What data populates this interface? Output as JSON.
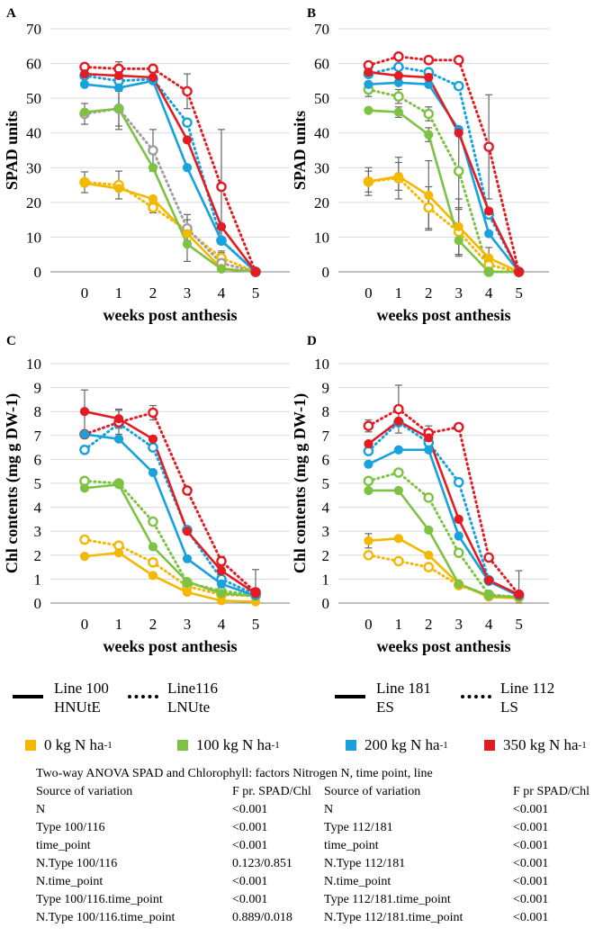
{
  "chart_data": [
    {
      "type": "line",
      "panel": "A",
      "ylabel": "SPAD units",
      "xlabel": "weeks post anthesis",
      "x": [
        0,
        1,
        2,
        3,
        4,
        5
      ],
      "xticks": [
        "0",
        "1",
        "2",
        "3",
        "4",
        "5"
      ],
      "ylim": [
        0,
        70
      ],
      "yticks": [
        "0",
        "10",
        "20",
        "30",
        "40",
        "50",
        "60",
        "70"
      ],
      "series": [
        {
          "name": "0 kg N solid",
          "color": "#F5B800",
          "style": "solid",
          "values": [
            25.5,
            24.0,
            21.0,
            11.0,
            1.0,
            0.0
          ],
          "err": [
            0,
            0,
            0,
            0,
            0,
            0
          ]
        },
        {
          "name": "0 kg N dotted",
          "color": "#F5B800",
          "style": "dotted",
          "values": [
            25.8,
            25.0,
            18.5,
            12.0,
            4.0,
            0.0
          ],
          "err": [
            3.0,
            4.0,
            1.5,
            3.0,
            2.0,
            0
          ]
        },
        {
          "name": "100 kg N solid",
          "color": "#7DC242",
          "style": "solid",
          "values": [
            46.0,
            47.0,
            30.0,
            8.0,
            0.8,
            0.0
          ],
          "err": [
            0,
            6.0,
            0,
            5.0,
            0,
            0
          ]
        },
        {
          "name": "100 kg N dotted",
          "color": "#A0A0A0",
          "style": "dotted",
          "values": [
            45.5,
            47.0,
            35.0,
            12.5,
            2.5,
            0.0
          ],
          "err": [
            3.0,
            5.0,
            6.0,
            4.0,
            3.0,
            0
          ]
        },
        {
          "name": "200 kg N solid",
          "color": "#17A2DE",
          "style": "solid",
          "values": [
            54.0,
            53.0,
            55.0,
            30.0,
            9.0,
            0.0
          ],
          "err": [
            0,
            0,
            0,
            0,
            0,
            0
          ]
        },
        {
          "name": "200 kg N dotted",
          "color": "#17A2DE",
          "style": "dotted",
          "values": [
            56.5,
            55.0,
            55.5,
            43.0,
            9.0,
            0.0
          ],
          "err": [
            0,
            0,
            0,
            0,
            0,
            0
          ]
        },
        {
          "name": "350 kg N solid",
          "color": "#E31B23",
          "style": "solid",
          "values": [
            57.0,
            56.5,
            56.0,
            38.0,
            13.0,
            0.0
          ],
          "err": [
            0,
            0,
            0,
            0,
            0,
            0
          ]
        },
        {
          "name": "350 kg N dotted",
          "color": "#E31B23",
          "style": "dotted",
          "values": [
            59.0,
            58.5,
            58.5,
            52.0,
            24.5,
            0.0
          ],
          "err": [
            1.0,
            2.0,
            1.0,
            5.0,
            16.5,
            0
          ]
        }
      ]
    },
    {
      "type": "line",
      "panel": "B",
      "ylabel": "SPAD units",
      "xlabel": "weeks post anthesis",
      "x": [
        0,
        1,
        2,
        3,
        4,
        5
      ],
      "xticks": [
        "0",
        "1",
        "2",
        "3",
        "4",
        "5"
      ],
      "ylim": [
        0,
        70
      ],
      "yticks": [
        "0",
        "10",
        "20",
        "30",
        "40",
        "50",
        "60",
        "70"
      ],
      "series": [
        {
          "name": "0 kg N solid",
          "color": "#F5B800",
          "style": "solid",
          "values": [
            26.0,
            27.5,
            22.0,
            13.0,
            4.0,
            0.0
          ],
          "err": [
            3.0,
            4.0,
            10.0,
            8.0,
            3.0,
            0
          ]
        },
        {
          "name": "0 kg N dotted",
          "color": "#F5B800",
          "style": "dotted",
          "values": [
            26.0,
            27.0,
            18.5,
            11.5,
            2.0,
            0.0
          ],
          "err": [
            4.0,
            6.0,
            6.0,
            7.0,
            2.0,
            0
          ]
        },
        {
          "name": "100 kg N solid",
          "color": "#7DC242",
          "style": "solid",
          "values": [
            46.5,
            46.0,
            39.5,
            9.0,
            0.0,
            0.0
          ],
          "err": [
            0,
            1.5,
            2.0,
            4.0,
            0,
            0
          ]
        },
        {
          "name": "100 kg N dotted",
          "color": "#7DC242",
          "style": "dotted",
          "values": [
            52.5,
            50.5,
            45.5,
            29.0,
            0.0,
            0.0
          ],
          "err": [
            2.0,
            2.0,
            2.0,
            11.0,
            0,
            0
          ]
        },
        {
          "name": "200 kg N solid",
          "color": "#17A2DE",
          "style": "solid",
          "values": [
            54.0,
            54.5,
            54.0,
            41.0,
            11.0,
            0.0
          ],
          "err": [
            0,
            0,
            0,
            0,
            0,
            0
          ]
        },
        {
          "name": "200 kg N dotted",
          "color": "#17A2DE",
          "style": "dotted",
          "values": [
            57.0,
            59.0,
            57.5,
            53.5,
            16.5,
            0.0
          ],
          "err": [
            0,
            0,
            0,
            0,
            0,
            0
          ]
        },
        {
          "name": "350 kg N solid",
          "color": "#E31B23",
          "style": "solid",
          "values": [
            57.5,
            56.5,
            56.0,
            40.0,
            17.5,
            0.0
          ],
          "err": [
            0,
            0,
            0,
            0,
            0,
            0
          ]
        },
        {
          "name": "350 kg N dotted",
          "color": "#E31B23",
          "style": "dotted",
          "values": [
            59.5,
            62.0,
            61.0,
            61.0,
            36.0,
            0.0
          ],
          "err": [
            0,
            0,
            0,
            0,
            15.0,
            0
          ]
        }
      ]
    },
    {
      "type": "line",
      "panel": "C",
      "ylabel": "Chl contents (mg g DW-1)",
      "xlabel": "weeks post anthesis",
      "x": [
        0,
        1,
        2,
        3,
        4,
        5
      ],
      "xticks": [
        "0",
        "1",
        "2",
        "3",
        "4",
        "5"
      ],
      "ylim": [
        0,
        10
      ],
      "yticks": [
        "0",
        "1",
        "2",
        "3",
        "4",
        "5",
        "6",
        "7",
        "8",
        "9",
        "10"
      ],
      "series": [
        {
          "name": "0 kg N solid",
          "color": "#F5B800",
          "style": "solid",
          "values": [
            1.95,
            2.1,
            1.15,
            0.45,
            0.1,
            0.05
          ],
          "err": [
            0,
            0,
            0,
            0,
            0,
            0
          ]
        },
        {
          "name": "0 kg N dotted",
          "color": "#F5B800",
          "style": "dotted",
          "values": [
            2.65,
            2.4,
            1.7,
            0.7,
            0.35,
            0.3
          ],
          "err": [
            0,
            0,
            0,
            0,
            0,
            0
          ]
        },
        {
          "name": "100 kg N solid",
          "color": "#7DC242",
          "style": "solid",
          "values": [
            4.8,
            4.95,
            2.35,
            0.9,
            0.4,
            0.3
          ],
          "err": [
            0,
            0,
            0,
            0,
            0,
            0
          ]
        },
        {
          "name": "100 kg N dotted",
          "color": "#7DC242",
          "style": "dotted",
          "values": [
            5.1,
            5.0,
            3.4,
            0.85,
            0.5,
            0.35
          ],
          "err": [
            0,
            0,
            0,
            0,
            0,
            0
          ]
        },
        {
          "name": "200 kg N solid",
          "color": "#17A2DE",
          "style": "solid",
          "values": [
            7.05,
            6.85,
            5.45,
            1.85,
            0.8,
            0.3
          ],
          "err": [
            0,
            0,
            0,
            0,
            0,
            0
          ]
        },
        {
          "name": "200 kg N dotted",
          "color": "#17A2DE",
          "style": "dotted",
          "values": [
            6.4,
            7.5,
            6.5,
            3.05,
            1.0,
            0.35
          ],
          "err": [
            0,
            0,
            0,
            0,
            0,
            0
          ]
        },
        {
          "name": "350 kg N solid",
          "color": "#E31B23",
          "style": "solid",
          "values": [
            8.0,
            7.7,
            6.85,
            3.0,
            1.35,
            0.4
          ],
          "err": [
            0.9,
            0.4,
            0,
            0,
            0,
            0
          ]
        },
        {
          "name": "350 kg N dotted",
          "color": "#E31B23",
          "style": "dotted",
          "values": [
            7.05,
            7.55,
            7.95,
            4.7,
            1.75,
            0.45
          ],
          "err": [
            0,
            0.5,
            0.3,
            0,
            0.2,
            0.95
          ]
        }
      ]
    },
    {
      "type": "line",
      "panel": "D",
      "ylabel": "Chl contents (mg g DW-1)",
      "xlabel": "weeks post anthesis",
      "x": [
        0,
        1,
        2,
        3,
        4,
        5
      ],
      "xticks": [
        "0",
        "1",
        "2",
        "3",
        "4",
        "5"
      ],
      "ylim": [
        0,
        10
      ],
      "yticks": [
        "0",
        "1",
        "2",
        "3",
        "4",
        "5",
        "6",
        "7",
        "8",
        "9",
        "10"
      ],
      "series": [
        {
          "name": "0 kg N solid",
          "color": "#F5B800",
          "style": "solid",
          "values": [
            2.6,
            2.7,
            2.0,
            0.8,
            0.25,
            0.2
          ],
          "err": [
            0.3,
            0,
            0,
            0,
            0,
            0
          ]
        },
        {
          "name": "0 kg N dotted",
          "color": "#F5B800",
          "style": "dotted",
          "values": [
            2.0,
            1.75,
            1.5,
            0.75,
            0.3,
            0.25
          ],
          "err": [
            0,
            0,
            0,
            0,
            0,
            0
          ]
        },
        {
          "name": "100 kg N solid",
          "color": "#7DC242",
          "style": "solid",
          "values": [
            4.7,
            4.7,
            3.05,
            0.8,
            0.3,
            0.25
          ],
          "err": [
            0,
            0,
            0,
            0,
            0,
            0
          ]
        },
        {
          "name": "100 kg N dotted",
          "color": "#7DC242",
          "style": "dotted",
          "values": [
            5.1,
            5.45,
            4.4,
            2.1,
            0.35,
            0.25
          ],
          "err": [
            0,
            0,
            0,
            0,
            0,
            0
          ]
        },
        {
          "name": "200 kg N solid",
          "color": "#17A2DE",
          "style": "solid",
          "values": [
            5.8,
            6.4,
            6.4,
            2.8,
            0.9,
            0.3
          ],
          "err": [
            0,
            0,
            0,
            0,
            0,
            0
          ]
        },
        {
          "name": "200 kg N dotted",
          "color": "#17A2DE",
          "style": "dotted",
          "values": [
            6.35,
            7.55,
            6.7,
            5.05,
            0.95,
            0.3
          ],
          "err": [
            0,
            0,
            0,
            0,
            0,
            0
          ]
        },
        {
          "name": "350 kg N solid",
          "color": "#E31B23",
          "style": "solid",
          "values": [
            6.65,
            7.6,
            6.9,
            3.5,
            0.95,
            0.35
          ],
          "err": [
            0,
            0,
            0,
            0,
            0,
            0
          ]
        },
        {
          "name": "350 kg N dotted",
          "color": "#E31B23",
          "style": "dotted",
          "values": [
            7.4,
            8.1,
            7.1,
            7.35,
            1.9,
            0.35
          ],
          "err": [
            0.25,
            1.0,
            0.3,
            0,
            0,
            1.0
          ]
        }
      ]
    }
  ],
  "legend": {
    "left_solid": {
      "line1": "Line 100",
      "line2": "HNUtE"
    },
    "left_dotted": {
      "line1": "Line116",
      "line2": "LNUte"
    },
    "right_solid": {
      "line1": "Line 181",
      "line2": "ES"
    },
    "right_dotted": {
      "line1": "Line 112",
      "line2": "LS"
    },
    "nitrogen": [
      {
        "label": "0 kg N ha",
        "sup": "-1",
        "color": "#F5B800"
      },
      {
        "label": "100 kg N ha",
        "sup": "-1",
        "color": "#7DC242"
      },
      {
        "label": "200 kg N ha",
        "sup": "-1",
        "color": "#17A2DE"
      },
      {
        "label": "350 kg N ha",
        "sup": "-1",
        "color": "#E31B23"
      }
    ]
  },
  "anova": {
    "title": "Two-way ANOVA SPAD and Chlorophyll: factors Nitrogen N, time point, line",
    "left_header": {
      "source": "Source of variation",
      "f": "F pr. SPAD/Chl"
    },
    "right_header": {
      "source": "Source of variation",
      "f": "F pr SPAD/Chl"
    },
    "left_rows": [
      {
        "source": "N",
        "f": "<0.001"
      },
      {
        "source": "Type 100/116",
        "f": "<0.001"
      },
      {
        "source": "time_point",
        "f": "<0.001"
      },
      {
        "source": "N.Type 100/116",
        "f": "0.123/0.851"
      },
      {
        "source": "N.time_point",
        "f": "<0.001"
      },
      {
        "source": "Type 100/116.time_point",
        "f": " <0.001"
      },
      {
        "source": "N.Type 100/116.time_point",
        "f": " 0.889/0.018"
      }
    ],
    "right_rows": [
      {
        "source": "N",
        "f": "<0.001"
      },
      {
        "source": "Type 112/181",
        "f": "<0.001"
      },
      {
        "source": "time_point",
        "f": "<0.001"
      },
      {
        "source": "N.Type 112/181",
        "f": "<0.001"
      },
      {
        "source": "N.time_point",
        "f": "<0.001"
      },
      {
        "source": "Type 112/181.time_point",
        "f": "<0.001"
      },
      {
        "source": "N.Type 112/181.time_point",
        "f": "<0.001"
      }
    ]
  }
}
